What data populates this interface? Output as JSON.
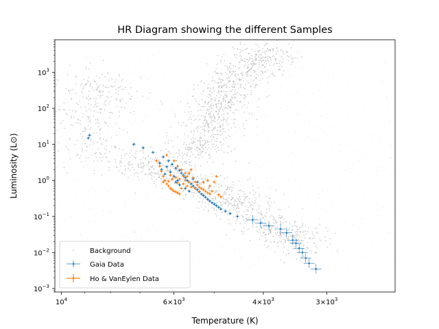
{
  "chart_data": {
    "type": "scatter",
    "title": "HR Diagram showing the different Samples",
    "xlabel": "Temperature (K)",
    "ylabel": "Luminosity (L⊙)",
    "x_scale": "log",
    "y_scale": "log",
    "x_inverted": true,
    "xlim": [
      10300,
      2200
    ],
    "ylim": [
      0.0008,
      8000
    ],
    "x_ticks": [
      {
        "value": 10000,
        "base": "10",
        "exp": "4"
      },
      {
        "value": 6000,
        "base": "6×10",
        "exp": "3"
      },
      {
        "value": 4000,
        "base": "4×10",
        "exp": "3"
      },
      {
        "value": 3000,
        "base": "3×10",
        "exp": "3"
      }
    ],
    "y_ticks": [
      {
        "value": 0.001,
        "base": "10",
        "exp": "−3"
      },
      {
        "value": 0.01,
        "base": "10",
        "exp": "−2"
      },
      {
        "value": 0.1,
        "base": "10",
        "exp": "−1"
      },
      {
        "value": 1,
        "base": "10",
        "exp": "0"
      },
      {
        "value": 10,
        "base": "10",
        "exp": "1"
      },
      {
        "value": 100,
        "base": "10",
        "exp": "2"
      },
      {
        "value": 1000,
        "base": "10",
        "exp": "3"
      }
    ],
    "legend": {
      "position": "lower-left",
      "entries": [
        "Background",
        "Gaia Data",
        "Ho & VanEylen Data"
      ]
    },
    "series": [
      {
        "name": "Background",
        "color": "#aaaaaa",
        "marker": "tiny-dot",
        "density_regions": [
          {
            "note": "main sequence band",
            "points": [
              [
                9000,
                8
              ],
              [
                7000,
                3
              ],
              [
                6000,
                1.5
              ],
              [
                5000,
                0.5
              ],
              [
                4500,
                0.25
              ],
              [
                4000,
                0.08
              ],
              [
                3600,
                0.03
              ],
              [
                3300,
                0.015
              ]
            ],
            "spread_dex": 0.45
          },
          {
            "note": "giant branch",
            "points": [
              [
                5600,
                3
              ],
              [
                5200,
                15
              ],
              [
                5000,
                60
              ],
              [
                4800,
                200
              ],
              [
                4500,
                700
              ],
              [
                4100,
                2500
              ],
              [
                3900,
                3500
              ]
            ],
            "spread_dex": 0.35
          },
          {
            "note": "hot sparse region",
            "points": [
              [
                9500,
                100
              ],
              [
                8500,
                30
              ],
              [
                9000,
                500
              ],
              [
                7500,
                200
              ]
            ],
            "spread_dex": 0.6
          }
        ]
      },
      {
        "name": "Gaia Data",
        "color": "#1f77b4",
        "marker": "point-with-errorbars",
        "points": [
          [
            8800,
            18
          ],
          [
            8850,
            15
          ],
          [
            7200,
            10
          ],
          [
            6900,
            8
          ],
          [
            6600,
            6
          ],
          [
            6300,
            4.5
          ],
          [
            6150,
            3.5
          ],
          [
            6050,
            2.8
          ],
          [
            5950,
            2.2
          ],
          [
            5850,
            1.9
          ],
          [
            5800,
            1.6
          ],
          [
            5750,
            1.4
          ],
          [
            5700,
            1.2
          ],
          [
            5650,
            1.0
          ],
          [
            5600,
            0.9
          ],
          [
            5550,
            0.8
          ],
          [
            5500,
            0.7
          ],
          [
            5450,
            0.62
          ],
          [
            5400,
            0.55
          ],
          [
            5350,
            0.48
          ],
          [
            5300,
            0.42
          ],
          [
            5250,
            0.38
          ],
          [
            5200,
            0.34
          ],
          [
            5150,
            0.3
          ],
          [
            5100,
            0.27
          ],
          [
            5050,
            0.24
          ],
          [
            5000,
            0.22
          ],
          [
            4950,
            0.2
          ],
          [
            4900,
            0.18
          ],
          [
            4850,
            0.16
          ],
          [
            4750,
            0.14
          ],
          [
            4650,
            0.12
          ],
          [
            4500,
            0.1
          ],
          [
            4200,
            0.08
          ],
          [
            4050,
            0.065
          ],
          [
            3900,
            0.055
          ],
          [
            3700,
            0.045
          ],
          [
            3600,
            0.035
          ],
          [
            3500,
            0.022
          ],
          [
            3450,
            0.018
          ],
          [
            3400,
            0.013
          ],
          [
            3350,
            0.01
          ],
          [
            3300,
            0.007
          ],
          [
            3250,
            0.005
          ],
          [
            3150,
            0.0035
          ],
          [
            6100,
            1.7
          ],
          [
            6000,
            1.3
          ],
          [
            5900,
            1.0
          ],
          [
            6200,
            2.4
          ],
          [
            5950,
            0.9
          ],
          [
            5850,
            0.75
          ],
          [
            5700,
            0.6
          ],
          [
            5600,
            0.5
          ],
          [
            6400,
            3.0
          ],
          [
            6350,
            2.0
          ],
          [
            6250,
            1.5
          ],
          [
            5500,
            1.1
          ],
          [
            5400,
            0.9
          ]
        ]
      },
      {
        "name": "Ho & VanEylen Data",
        "color": "#ff7f0e",
        "marker": "point-with-errorbars",
        "points": [
          [
            6400,
            2.5
          ],
          [
            6350,
            1.8
          ],
          [
            6300,
            1.3
          ],
          [
            6250,
            1.0
          ],
          [
            6200,
            0.8
          ],
          [
            6150,
            0.7
          ],
          [
            6100,
            0.6
          ],
          [
            6050,
            0.55
          ],
          [
            6000,
            0.5
          ],
          [
            5950,
            0.48
          ],
          [
            5900,
            0.45
          ],
          [
            5850,
            0.42
          ],
          [
            5800,
            0.6
          ],
          [
            5750,
            0.8
          ],
          [
            5700,
            1.0
          ],
          [
            5650,
            1.3
          ],
          [
            5600,
            1.6
          ],
          [
            5550,
            2.0
          ],
          [
            5500,
            1.2
          ],
          [
            5450,
            0.9
          ],
          [
            5400,
            0.75
          ],
          [
            5350,
            0.65
          ],
          [
            5300,
            0.6
          ],
          [
            5250,
            0.55
          ],
          [
            5200,
            0.5
          ],
          [
            5150,
            0.45
          ],
          [
            5100,
            0.42
          ],
          [
            5050,
            0.5
          ],
          [
            5000,
            0.9
          ],
          [
            4950,
            1.3
          ],
          [
            4900,
            0.4
          ],
          [
            4850,
            0.35
          ],
          [
            6500,
            3.5
          ],
          [
            6200,
            5.0
          ],
          [
            6000,
            3.5
          ],
          [
            5900,
            2.5
          ],
          [
            5800,
            2.0
          ],
          [
            5700,
            1.6
          ],
          [
            6300,
            0.9
          ],
          [
            6150,
            0.95
          ],
          [
            6050,
            1.1
          ],
          [
            5950,
            1.2
          ],
          [
            5850,
            1.1
          ],
          [
            5650,
            0.7
          ],
          [
            5550,
            0.65
          ],
          [
            5450,
            0.6
          ],
          [
            5350,
            0.5
          ],
          [
            5250,
            0.9
          ],
          [
            5150,
            1.0
          ],
          [
            5100,
            0.7
          ],
          [
            6100,
            1.4
          ],
          [
            5900,
            0.85
          ],
          [
            5750,
            1.3
          ],
          [
            5600,
            0.9
          ]
        ]
      }
    ]
  }
}
